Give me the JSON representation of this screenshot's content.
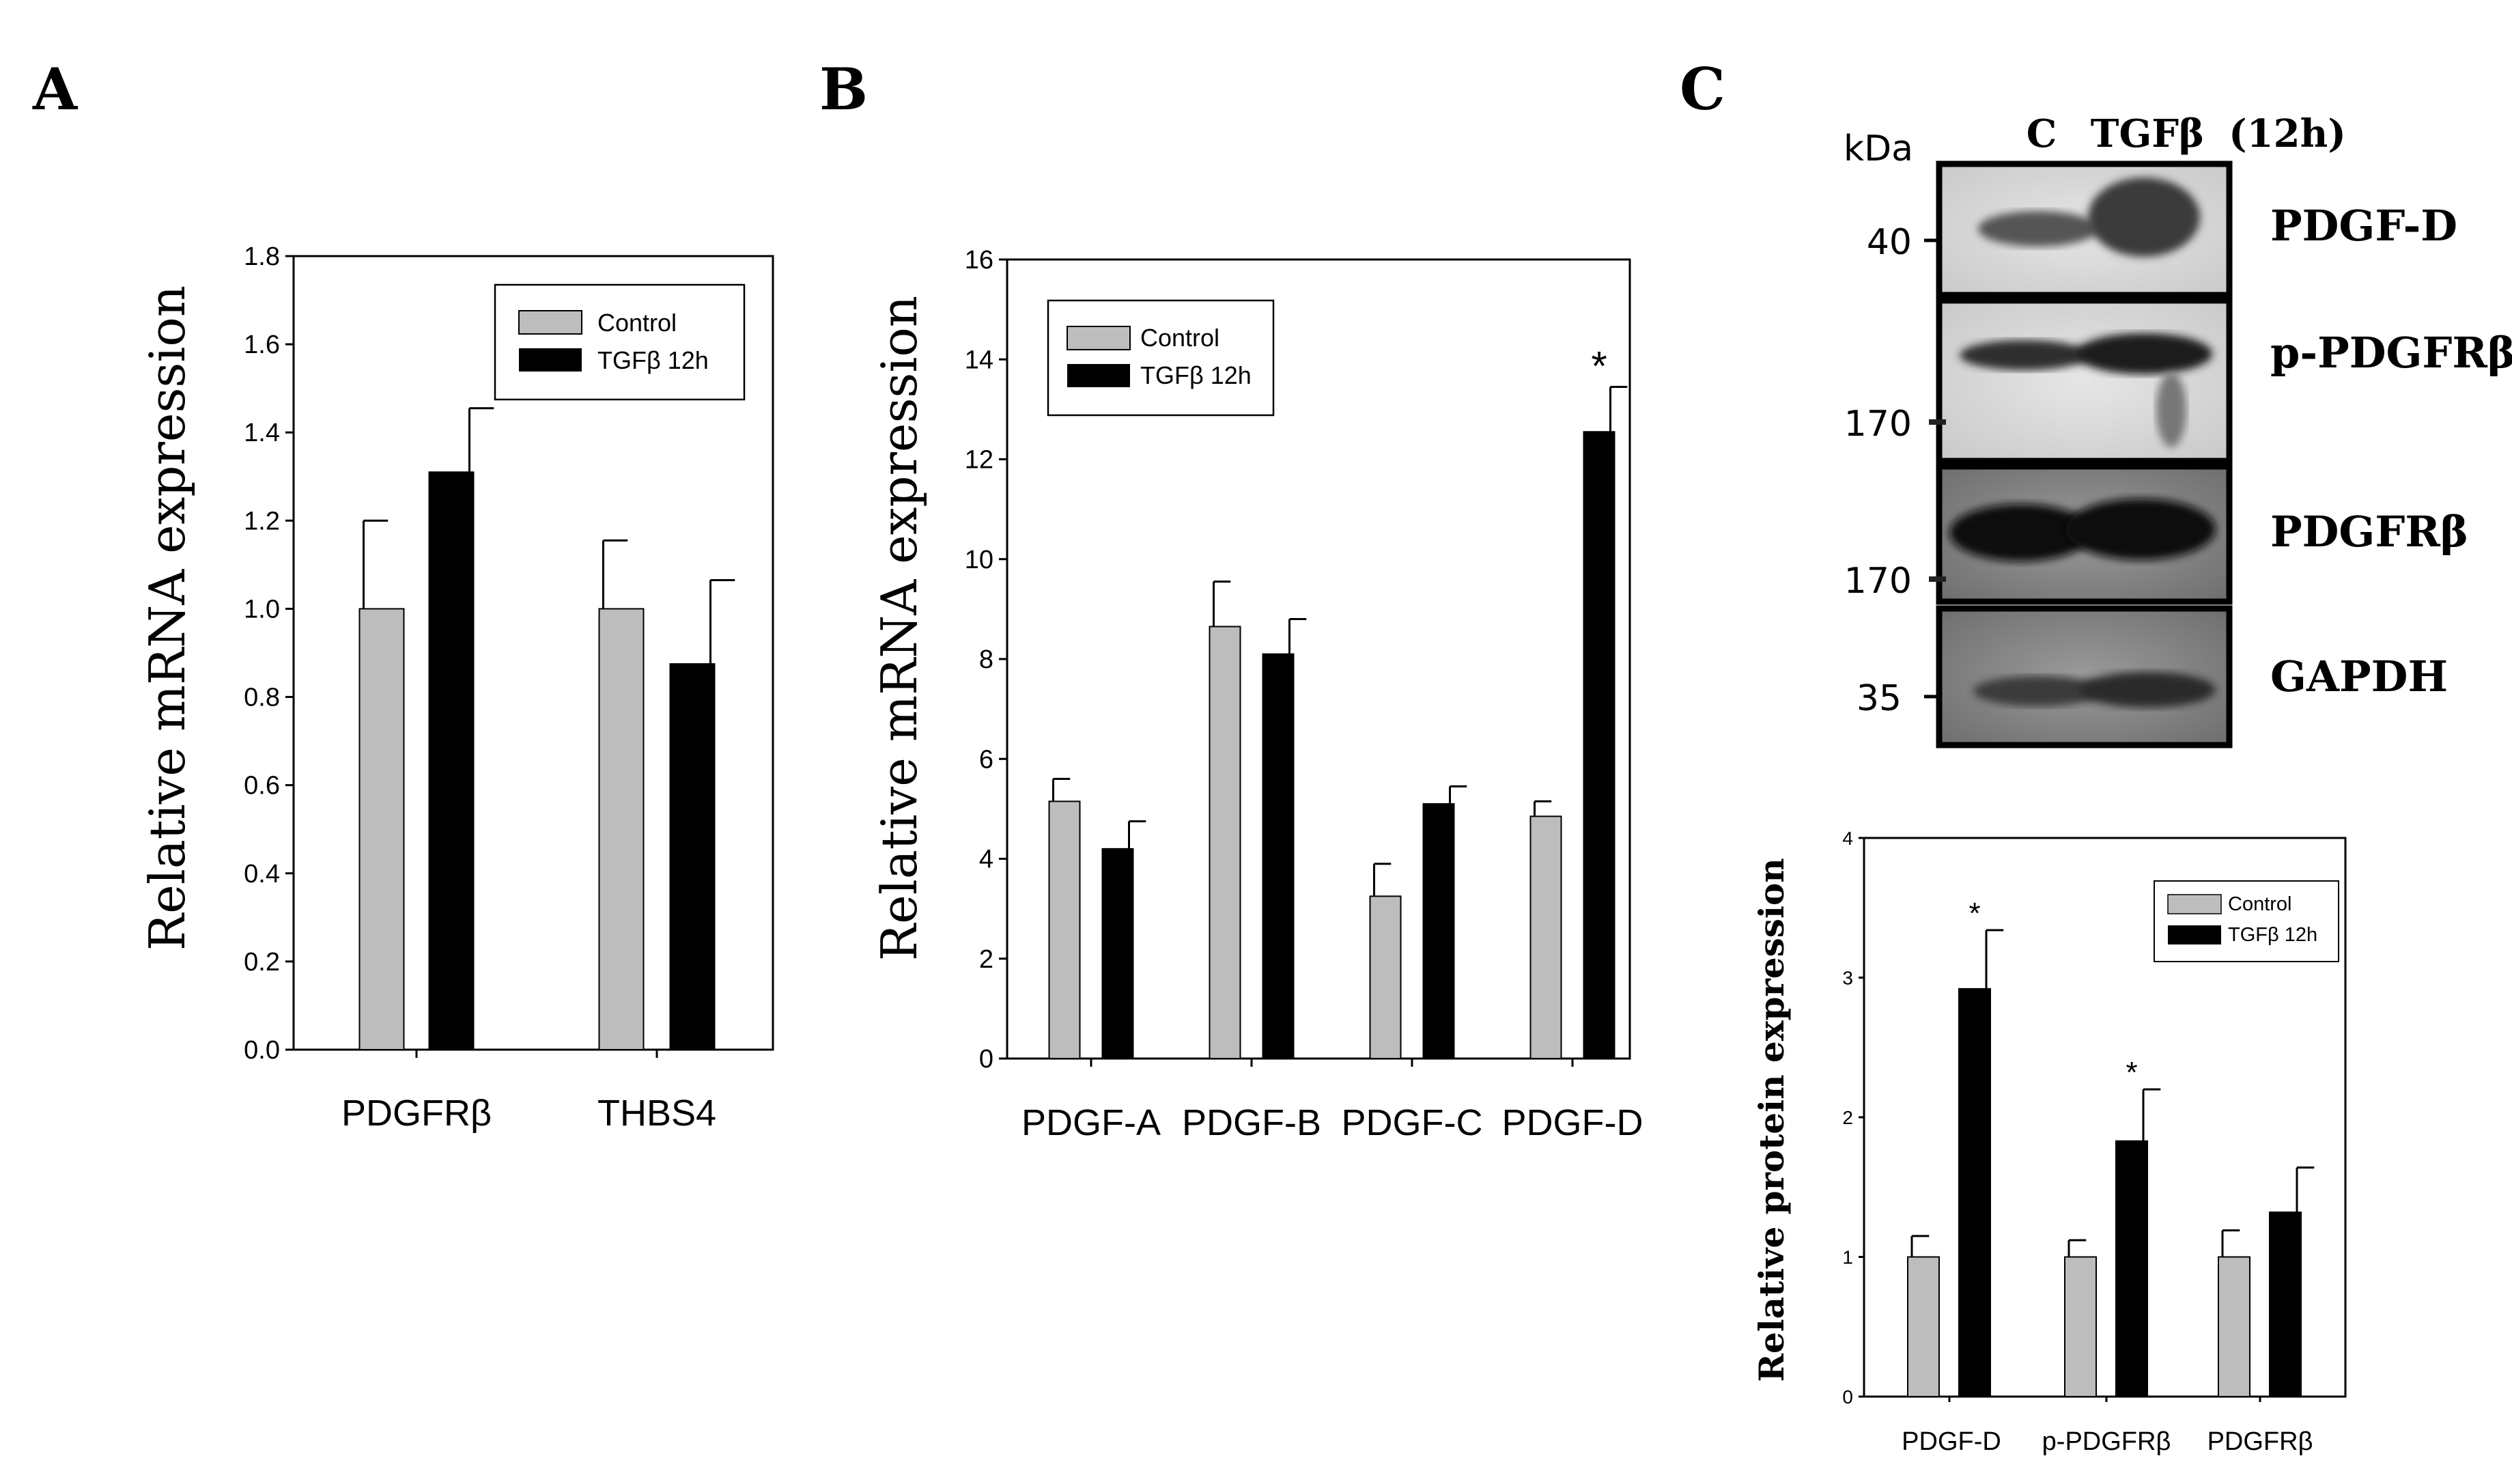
{
  "panels": {
    "a": {
      "label": "A"
    },
    "b": {
      "label": "B"
    },
    "c": {
      "label": "C"
    }
  },
  "colors": {
    "control": "#bdbdbd",
    "treated": "#000000"
  },
  "chart_data": [
    {
      "id": "A",
      "type": "bar",
      "categories": [
        "PDGFRβ",
        "THBS4"
      ],
      "ylabel": "Relative mRNA expression",
      "ylim": [
        0,
        1.8
      ],
      "yticks": [
        "0.0",
        "0.2",
        "0.4",
        "0.6",
        "0.8",
        "1.0",
        "1.2",
        "1.4",
        "1.6",
        "1.8"
      ],
      "legend": {
        "position": "top-right"
      },
      "series": [
        {
          "name": "Control",
          "values": [
            1.0,
            1.0
          ],
          "errors": [
            0.2,
            0.155
          ]
        },
        {
          "name": "TGFβ 12h",
          "values": [
            1.31,
            0.875
          ],
          "errors": [
            0.145,
            0.19
          ]
        }
      ],
      "annotations": []
    },
    {
      "id": "B",
      "type": "bar",
      "categories": [
        "PDGF-A",
        "PDGF-B",
        "PDGF-C",
        "PDGF-D"
      ],
      "ylabel": "Relative mRNA expression",
      "ylim": [
        0,
        16
      ],
      "yticks": [
        "0",
        "2",
        "4",
        "6",
        "8",
        "10",
        "12",
        "14",
        "16"
      ],
      "legend": {
        "position": "top-left"
      },
      "series": [
        {
          "name": "Control",
          "values": [
            5.15,
            8.65,
            3.25,
            4.85
          ],
          "errors": [
            0.45,
            0.9,
            0.65,
            0.3
          ]
        },
        {
          "name": "TGFβ 12h",
          "values": [
            4.2,
            8.1,
            5.1,
            12.55
          ],
          "errors": [
            0.55,
            0.7,
            0.35,
            0.9
          ]
        }
      ],
      "annotations": [
        {
          "category": "PDGF-D",
          "series": "TGFβ 12h",
          "text": "*"
        }
      ]
    },
    {
      "id": "C",
      "type": "bar",
      "categories": [
        "PDGF-D",
        "p-PDGFRβ",
        "PDGFRβ"
      ],
      "ylabel": "Relative protein expression",
      "ylim": [
        0,
        4
      ],
      "yticks": [
        "0",
        "1",
        "2",
        "3",
        "4"
      ],
      "legend": {
        "position": "top-right"
      },
      "series": [
        {
          "name": "Control",
          "values": [
            1.0,
            1.0,
            1.0
          ],
          "errors": [
            0.15,
            0.12,
            0.19
          ]
        },
        {
          "name": "TGFβ 12h",
          "values": [
            2.92,
            1.83,
            1.32
          ],
          "errors": [
            0.42,
            0.37,
            0.32
          ]
        }
      ],
      "annotations": [
        {
          "category": "PDGF-D",
          "series": "TGFβ 12h",
          "text": "*"
        },
        {
          "category": "p-PDGFRβ",
          "series": "TGFβ 12h",
          "text": "*"
        }
      ]
    }
  ],
  "western_blot": {
    "kda_label": "kDa",
    "lane_labels": [
      "C",
      "TGFβ",
      "(12h)"
    ],
    "rows": [
      {
        "protein": "PDGF-D",
        "marker": "40"
      },
      {
        "protein": "p-PDGFRβ",
        "marker": "170"
      },
      {
        "protein": "PDGFRβ",
        "marker": "170"
      },
      {
        "protein": "GAPDH",
        "marker": "35"
      }
    ]
  }
}
